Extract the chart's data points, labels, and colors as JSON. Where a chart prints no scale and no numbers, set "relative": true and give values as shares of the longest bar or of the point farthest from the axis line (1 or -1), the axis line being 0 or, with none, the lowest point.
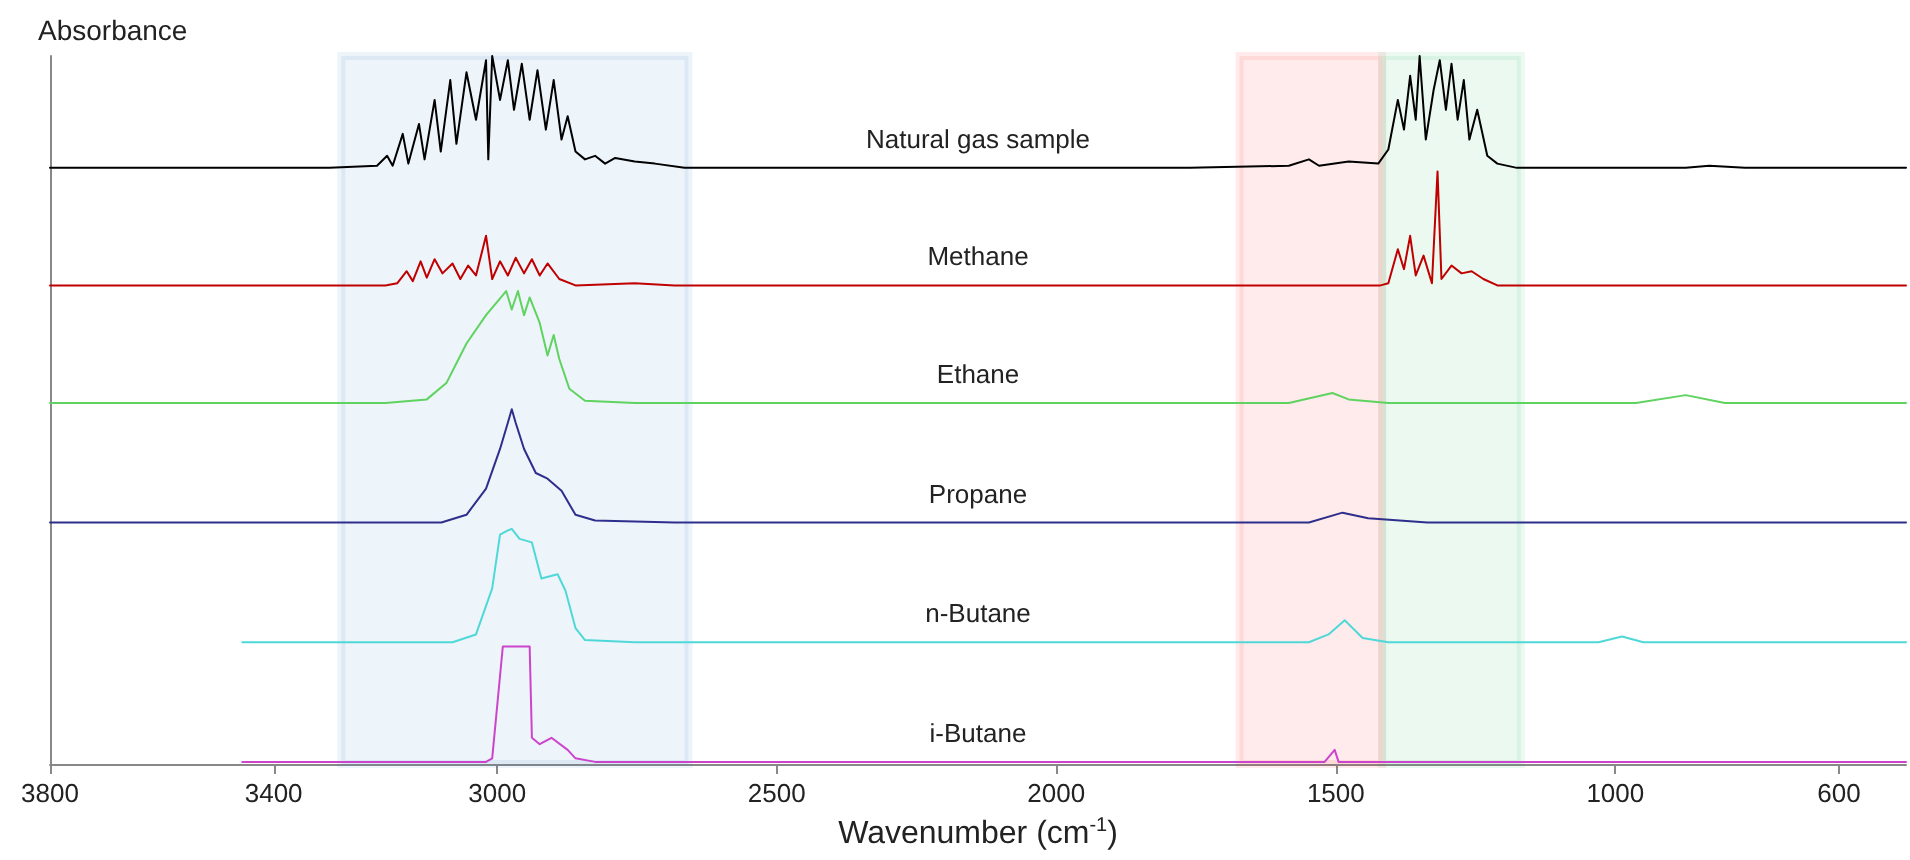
{
  "chart_data": {
    "type": "line",
    "relative": true,
    "ylabel": "Absorbance",
    "xlabel": "Wavenumber (cm$^{-1}$)",
    "xlim": [
      3800,
      480
    ],
    "xticks": [
      3800,
      3400,
      3000,
      2500,
      2000,
      1500,
      1000,
      600
    ],
    "legend": false,
    "grid": false,
    "marker": "none",
    "line_style": "solid",
    "bands": [
      {
        "axis": "x",
        "from": 3279,
        "to": 2658,
        "color": "#1f6fbf"
      },
      {
        "axis": "x",
        "from": 1672,
        "to": 1417,
        "color": "#ff0000"
      },
      {
        "axis": "x",
        "from": 1417,
        "to": 1169,
        "color": "#00b050"
      }
    ],
    "series": [
      {
        "name": "Natural gas sample",
        "color": "#000000",
        "x": [
          3800,
          3300,
          3215,
          3197,
          3187,
          3169,
          3159,
          3140,
          3130,
          3112,
          3101,
          3084,
          3073,
          3055,
          3038,
          3020,
          3016,
          3009,
          2995,
          2981,
          2970,
          2956,
          2942,
          2928,
          2913,
          2899,
          2885,
          2874,
          2860,
          2843,
          2825,
          2807,
          2789,
          2754,
          2718,
          2665,
          2470,
          2140,
          1761,
          1584,
          1548,
          1530,
          1477,
          1424,
          1406,
          1389,
          1378,
          1367,
          1357,
          1350,
          1339,
          1325,
          1314,
          1303,
          1293,
          1282,
          1271,
          1261,
          1247,
          1229,
          1211,
          1176,
          874,
          832,
          768,
          480
        ],
        "values": [
          0.842,
          0.842,
          0.845,
          0.859,
          0.845,
          0.89,
          0.848,
          0.904,
          0.854,
          0.938,
          0.865,
          0.966,
          0.876,
          0.977,
          0.91,
          0.994,
          0.854,
          1.0,
          0.938,
          0.994,
          0.924,
          0.989,
          0.91,
          0.98,
          0.896,
          0.966,
          0.882,
          0.915,
          0.865,
          0.854,
          0.859,
          0.848,
          0.856,
          0.851,
          0.848,
          0.842,
          0.842,
          0.842,
          0.842,
          0.845,
          0.854,
          0.845,
          0.851,
          0.848,
          0.868,
          0.938,
          0.896,
          0.972,
          0.91,
          1.0,
          0.882,
          0.952,
          0.994,
          0.924,
          0.989,
          0.91,
          0.966,
          0.882,
          0.924,
          0.859,
          0.848,
          0.842,
          0.842,
          0.845,
          0.842,
          0.842
        ]
      },
      {
        "name": "Methane",
        "color": "#c00000",
        "x": [
          3800,
          3200,
          3179,
          3162,
          3151,
          3137,
          3126,
          3112,
          3098,
          3080,
          3066,
          3052,
          3038,
          3020,
          3009,
          2995,
          2981,
          2967,
          2952,
          2938,
          2924,
          2910,
          2889,
          2860,
          2754,
          2683,
          2140,
          1420,
          1406,
          1389,
          1378,
          1367,
          1357,
          1343,
          1328,
          1318,
          1311,
          1293,
          1275,
          1257,
          1236,
          1211,
          480
        ],
        "values": [
          0.676,
          0.676,
          0.679,
          0.696,
          0.682,
          0.71,
          0.687,
          0.713,
          0.693,
          0.707,
          0.685,
          0.704,
          0.69,
          0.746,
          0.685,
          0.71,
          0.69,
          0.715,
          0.693,
          0.713,
          0.69,
          0.707,
          0.685,
          0.676,
          0.679,
          0.676,
          0.676,
          0.676,
          0.679,
          0.727,
          0.699,
          0.746,
          0.69,
          0.718,
          0.679,
          0.837,
          0.685,
          0.704,
          0.693,
          0.696,
          0.685,
          0.676,
          0.676
        ]
      },
      {
        "name": "Ethane",
        "color": "#5fd35f",
        "x": [
          3800,
          3200,
          3126,
          3091,
          3055,
          3020,
          3002,
          2984,
          2974,
          2963,
          2952,
          2942,
          2924,
          2910,
          2899,
          2889,
          2871,
          2843,
          2754,
          2140,
          1584,
          1506,
          1477,
          1406,
          963,
          874,
          804,
          480
        ],
        "values": [
          0.51,
          0.51,
          0.515,
          0.538,
          0.594,
          0.634,
          0.651,
          0.668,
          0.642,
          0.668,
          0.634,
          0.659,
          0.623,
          0.577,
          0.606,
          0.572,
          0.53,
          0.513,
          0.51,
          0.51,
          0.51,
          0.524,
          0.515,
          0.51,
          0.51,
          0.521,
          0.51,
          0.51
        ]
      },
      {
        "name": "Propane",
        "color": "#2e2e8c",
        "x": [
          3800,
          3100,
          3055,
          3020,
          2995,
          2981,
          2974,
          2967,
          2952,
          2931,
          2910,
          2885,
          2860,
          2825,
          2683,
          2140,
          1548,
          1488,
          1442,
          1336,
          480
        ],
        "values": [
          0.341,
          0.341,
          0.352,
          0.389,
          0.445,
          0.482,
          0.501,
          0.482,
          0.445,
          0.411,
          0.403,
          0.386,
          0.352,
          0.344,
          0.341,
          0.341,
          0.341,
          0.355,
          0.347,
          0.341,
          0.341
        ]
      },
      {
        "name": "n-Butane",
        "color": "#4fd8d8",
        "x": [
          3456,
          3080,
          3038,
          3009,
          2995,
          2981,
          2974,
          2960,
          2938,
          2921,
          2892,
          2878,
          2860,
          2843,
          2754,
          2140,
          1548,
          1513,
          1484,
          1452,
          1406,
          1030,
          988,
          950,
          480
        ],
        "values": [
          0.172,
          0.172,
          0.183,
          0.248,
          0.324,
          0.33,
          0.332,
          0.318,
          0.313,
          0.262,
          0.268,
          0.245,
          0.192,
          0.175,
          0.172,
          0.172,
          0.172,
          0.183,
          0.203,
          0.178,
          0.172,
          0.172,
          0.18,
          0.172,
          0.172
        ]
      },
      {
        "name": "i-Butane",
        "color": "#cc44cc",
        "x": [
          3456,
          3020,
          3009,
          2990,
          2942,
          2938,
          2924,
          2903,
          2874,
          2860,
          2825,
          2140,
          1520,
          1502,
          1495,
          480
        ],
        "values": [
          0.003,
          0.003,
          0.008,
          0.166,
          0.166,
          0.037,
          0.028,
          0.037,
          0.02,
          0.008,
          0.003,
          0.003,
          0.003,
          0.02,
          0.003,
          0.003
        ]
      }
    ]
  }
}
